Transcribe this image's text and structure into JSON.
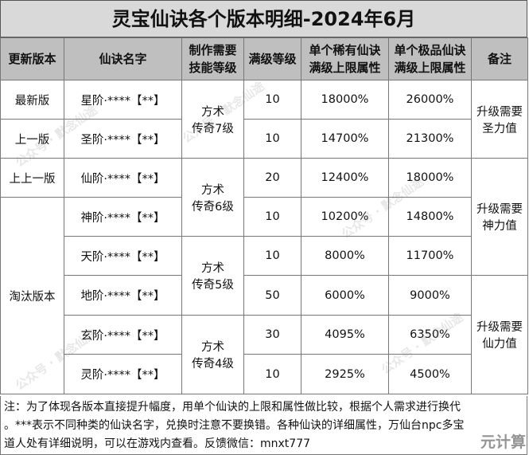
{
  "title": "灵宝仙诀各个版本明细-2024年6月",
  "headers": [
    "更新版本",
    "仙诀名字",
    "制作需要",
    "技能等级",
    "满级等级",
    "单个稀有仙诀",
    "满级上限属性",
    "单个极品仙诀",
    "满级上限属性",
    "备注"
  ],
  "rows": [
    {
      "name": "星阶·****【**】",
      "level": "10",
      "rare": "18000%",
      "epic": "26000%"
    },
    {
      "name": "圣阶·****【**】",
      "level": "10",
      "rare": "14700%",
      "epic": "21300%"
    },
    {
      "name": "仙阶·****【**】",
      "level": "20",
      "rare": "12400%",
      "epic": "18000%"
    },
    {
      "name": "神阶·****【**】",
      "level": "10",
      "rare": "10200%",
      "epic": "14800%"
    },
    {
      "name": "天阶·****【**】",
      "level": "10",
      "rare": "8000%",
      "epic": "11700%"
    },
    {
      "name": "地阶·****【**】",
      "level": "50",
      "rare": "6000%",
      "epic": "9000%"
    },
    {
      "name": "玄阶·****【**】",
      "level": "30",
      "rare": "4095%",
      "epic": "6350%"
    },
    {
      "name": "灵阶·****【**】",
      "level": "10",
      "rare": "2925%",
      "epic": "4500%"
    }
  ],
  "versions": [
    "最新版",
    "上一版",
    "上上一版",
    "淘汰版本"
  ],
  "skills": [
    {
      "l1": "方术",
      "l2": "传奇7级"
    },
    {
      "l1": "方术",
      "l2": "传奇6级"
    },
    {
      "l1": "方术",
      "l2": "传奇5级"
    },
    {
      "l1": "方术",
      "l2": "传奇4级"
    }
  ],
  "remarks": [
    {
      "l1": "升级需要",
      "l2": "圣力值"
    },
    {
      "l1": "升级需要",
      "l2": "神力值"
    },
    {
      "l1": "升级需要",
      "l2": "仙力值"
    }
  ],
  "note": {
    "line1": "注：为了体现各版本直接提升幅度，用单个仙诀的上限和属性做比较，根据个人需求进行换代",
    "line2": "。***表示不同种类的仙诀名字，兑换时注意不要换错。各种仙诀的详细属性，万仙台npc多宝",
    "line3": "道人处有详细说明，可以在游戏内查看。反馈微信：mnxt777"
  },
  "watermark": {
    "text": "公众号 · 默念仙途",
    "corner": "元计算"
  }
}
